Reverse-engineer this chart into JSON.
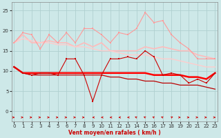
{
  "xlabel": "Vent moyen/en rafales ( km/h )",
  "bg_color": "#cde8e8",
  "grid_color": "#b0d0d0",
  "x": [
    0,
    1,
    2,
    3,
    4,
    5,
    6,
    7,
    8,
    9,
    10,
    11,
    12,
    13,
    14,
    15,
    16,
    17,
    18,
    19,
    20,
    21,
    22,
    23
  ],
  "series": [
    {
      "y": [
        17,
        19.5,
        19,
        15.5,
        19,
        17,
        19.5,
        17,
        20.5,
        20.5,
        19,
        17,
        19.5,
        19,
        20.5,
        24.5,
        22,
        22.5,
        19,
        17,
        15.5,
        13,
        13,
        13
      ],
      "color": "#ff9999",
      "lw": 0.8,
      "marker": "s",
      "ms": 2.0,
      "zorder": 3
    },
    {
      "y": [
        17,
        19,
        17,
        17,
        17.5,
        17,
        17,
        16,
        17,
        16,
        17,
        15,
        15,
        15,
        15,
        16,
        15.5,
        16,
        15.5,
        15,
        15,
        14,
        13.5,
        13
      ],
      "color": "#ffbbbb",
      "lw": 1.2,
      "marker": null,
      "ms": 0,
      "zorder": 2
    },
    {
      "y": [
        17,
        18,
        17.5,
        17,
        17,
        16.5,
        16.5,
        16,
        16,
        15.5,
        15,
        15,
        14.5,
        14,
        14,
        14,
        13.5,
        13,
        13,
        12.5,
        12,
        11.5,
        11,
        11
      ],
      "color": "#ffcccc",
      "lw": 1.0,
      "marker": null,
      "ms": 0,
      "zorder": 2
    },
    {
      "y": [
        11,
        9.5,
        9,
        9.5,
        9.5,
        9,
        13,
        13,
        9,
        2.5,
        9,
        13,
        13,
        13.5,
        13,
        15,
        13.5,
        9,
        9.5,
        9,
        7,
        8,
        7,
        9.5
      ],
      "color": "#cc0000",
      "lw": 0.8,
      "marker": "s",
      "ms": 2.0,
      "zorder": 4
    },
    {
      "y": [
        11,
        9.5,
        9.5,
        9.5,
        9.5,
        9.5,
        9.5,
        9.5,
        9.5,
        9.5,
        9.5,
        9.5,
        9.5,
        9.5,
        9.5,
        9.5,
        9.0,
        9.0,
        9.0,
        9.0,
        8.5,
        8.5,
        8.0,
        9.5
      ],
      "color": "#ff0000",
      "lw": 1.8,
      "marker": null,
      "ms": 0,
      "zorder": 3
    },
    {
      "y": [
        11,
        9.5,
        9,
        9,
        9,
        9,
        9,
        9,
        9,
        9,
        9,
        8.5,
        8.5,
        8,
        8,
        7.5,
        7.5,
        7,
        7,
        6.5,
        6.5,
        6.5,
        6,
        5.5
      ],
      "color": "#bb0000",
      "lw": 0.9,
      "marker": null,
      "ms": 0,
      "zorder": 2
    }
  ],
  "wind_dirs": [
    0,
    0,
    0,
    0,
    0,
    0,
    0,
    0,
    0,
    180,
    180,
    180,
    180,
    180,
    135,
    135,
    135,
    135,
    45,
    0,
    0,
    0,
    0,
    0
  ],
  "arrow_color": "#cc0000",
  "xlim": [
    -0.3,
    23.3
  ],
  "ylim": [
    -2.5,
    27
  ],
  "yticks": [
    0,
    5,
    10,
    15,
    20,
    25
  ],
  "xticks": [
    0,
    1,
    2,
    3,
    4,
    5,
    6,
    7,
    8,
    9,
    10,
    11,
    12,
    13,
    14,
    15,
    16,
    17,
    18,
    19,
    20,
    21,
    22,
    23
  ]
}
